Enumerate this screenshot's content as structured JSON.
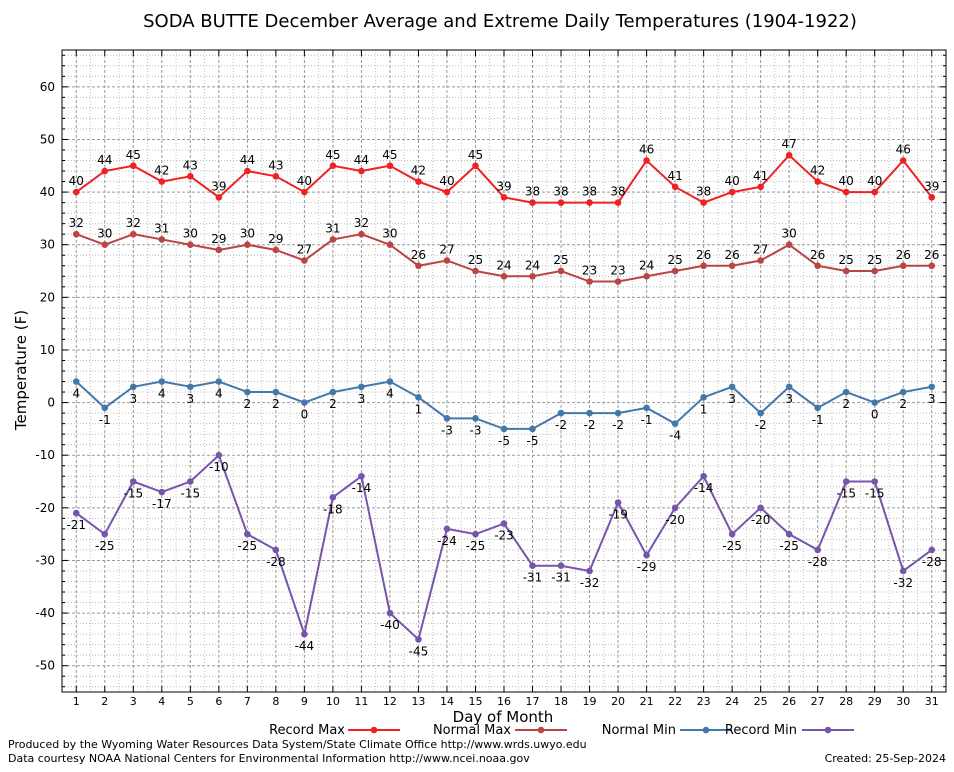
{
  "chart_data": {
    "type": "line",
    "title": "SODA BUTTE December Average and Extreme Daily Temperatures (1904-1922)",
    "xlabel": "Day of Month",
    "ylabel": "Temperature (F)",
    "ylim": [
      -55,
      67
    ],
    "yticks": [
      60,
      50,
      40,
      30,
      20,
      10,
      0,
      -10,
      -20,
      -30,
      -40,
      -50
    ],
    "xlim": [
      0.5,
      31.5
    ],
    "x": [
      1,
      2,
      3,
      4,
      5,
      6,
      7,
      8,
      9,
      10,
      11,
      12,
      13,
      14,
      15,
      16,
      17,
      18,
      19,
      20,
      21,
      22,
      23,
      24,
      25,
      26,
      27,
      28,
      29,
      30,
      31
    ],
    "grid": true,
    "legend_position": "bottom",
    "series": [
      {
        "name": "Record Max",
        "color": "#ee2222",
        "label_pos": "above",
        "values": [
          40,
          44,
          45,
          42,
          43,
          39,
          44,
          43,
          40,
          45,
          44,
          45,
          42,
          40,
          45,
          39,
          38,
          38,
          38,
          38,
          46,
          41,
          38,
          40,
          41,
          47,
          42,
          40,
          40,
          46,
          39
        ]
      },
      {
        "name": "Normal Max",
        "color": "#bb4444",
        "label_pos": "above",
        "values": [
          32,
          30,
          32,
          31,
          30,
          29,
          30,
          29,
          27,
          31,
          32,
          30,
          26,
          27,
          25,
          24,
          24,
          25,
          23,
          23,
          24,
          25,
          26,
          26,
          27,
          30,
          26,
          25,
          25,
          26,
          26
        ]
      },
      {
        "name": "Normal Min",
        "color": "#4477aa",
        "label_pos": "below",
        "values": [
          4,
          -1,
          3,
          4,
          3,
          4,
          2,
          2,
          0,
          2,
          3,
          4,
          1,
          -3,
          -3,
          -5,
          -5,
          -2,
          -2,
          -2,
          -1,
          -4,
          1,
          3,
          -2,
          3,
          -1,
          2,
          0,
          2,
          3
        ]
      },
      {
        "name": "Record Min",
        "color": "#7755aa",
        "label_pos": "below",
        "values": [
          -21,
          -25,
          -15,
          -17,
          -15,
          -10,
          -25,
          -28,
          -44,
          -18,
          -14,
          -40,
          -45,
          -24,
          -25,
          -23,
          -31,
          -31,
          -32,
          -19,
          -29,
          -20,
          -14,
          -25,
          -20,
          -25,
          -28,
          -15,
          -15,
          -32,
          -28
        ]
      }
    ]
  },
  "footer": {
    "produced_by": "Produced by the Wyoming Water Resources Data System/State Climate Office http://www.wrds.uwyo.edu",
    "data_courtesy": "Data courtesy NOAA National Centers for Environmental Information http://www.ncei.noaa.gov",
    "created": "Created:  25-Sep-2024"
  }
}
